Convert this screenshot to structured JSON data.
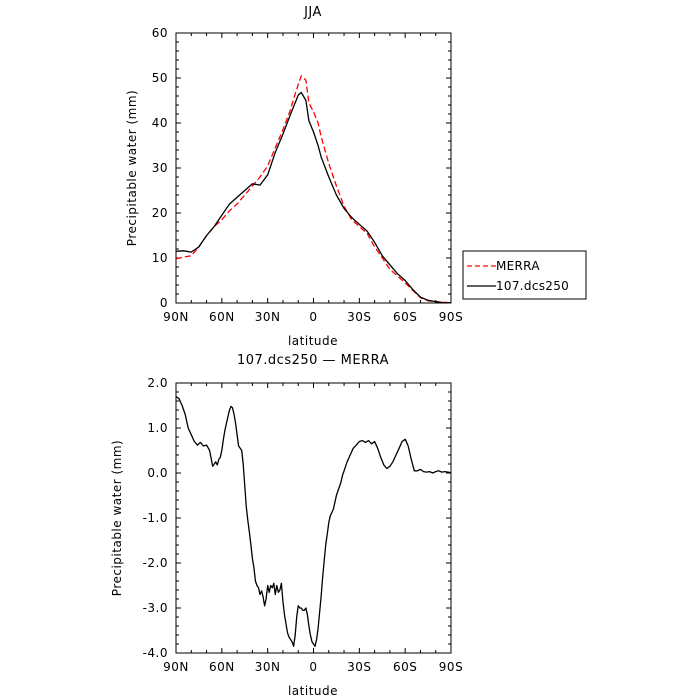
{
  "chart_data": [
    {
      "type": "line",
      "title": "JJA",
      "xlabel": "latitude",
      "ylabel": "Precipitable water (mm)",
      "xlim": [
        90,
        -90
      ],
      "ylim": [
        0,
        60
      ],
      "x_ticks": [
        90,
        60,
        30,
        0,
        -30,
        -60,
        -90
      ],
      "x_tick_labels": [
        "90N",
        "60N",
        "30N",
        "0",
        "30S",
        "60S",
        "90S"
      ],
      "y_ticks": [
        0,
        10,
        20,
        30,
        40,
        50,
        60
      ],
      "y_tick_labels": [
        "0",
        "10",
        "20",
        "30",
        "40",
        "50",
        "60"
      ],
      "legend": {
        "placement": "outside-right"
      },
      "series": [
        {
          "name": "MERRA",
          "color": "#ff0000",
          "dash": "dashed",
          "x": [
            90,
            85,
            80,
            75,
            70,
            65,
            60,
            55,
            50,
            45,
            40,
            35,
            30,
            25,
            20,
            15,
            12,
            10,
            8,
            5,
            3,
            0,
            -3,
            -5,
            -10,
            -15,
            -20,
            -25,
            -30,
            -35,
            -40,
            -45,
            -50,
            -55,
            -60,
            -65,
            -70,
            -75,
            -80,
            -85,
            -90
          ],
          "values": [
            9.8,
            10.2,
            10.5,
            12.5,
            15,
            17,
            18.5,
            20.5,
            22,
            24,
            26,
            28,
            30.5,
            34.5,
            38.5,
            43,
            46.5,
            48.5,
            50.5,
            49.5,
            44.5,
            42.5,
            40,
            37,
            31,
            26,
            21.5,
            18.5,
            17,
            15.5,
            12.5,
            10,
            7.5,
            6,
            4.5,
            2.8,
            1.2,
            0.5,
            0.3,
            0.15,
            0.05
          ]
        },
        {
          "name": "107.dcs250",
          "color": "#000000",
          "dash": "solid",
          "x": [
            90,
            85,
            80,
            75,
            70,
            65,
            60,
            55,
            50,
            45,
            40,
            35,
            30,
            25,
            20,
            15,
            12,
            10,
            8,
            5,
            3,
            0,
            -3,
            -5,
            -10,
            -15,
            -20,
            -25,
            -30,
            -35,
            -40,
            -45,
            -50,
            -55,
            -60,
            -65,
            -70,
            -75,
            -80,
            -85,
            -90
          ],
          "values": [
            11.5,
            11.6,
            11.3,
            12.5,
            15,
            17,
            19.5,
            22,
            23.5,
            25,
            26.5,
            26.2,
            28.5,
            33.5,
            37.5,
            42,
            44.5,
            46.2,
            46.8,
            45,
            40.5,
            38,
            35,
            32.5,
            28,
            24,
            21,
            19,
            17.5,
            16,
            13.5,
            10.5,
            8.5,
            6.5,
            5,
            3,
            1.3,
            0.6,
            0.3,
            0.1,
            0.05
          ]
        }
      ]
    },
    {
      "type": "line",
      "title": "107.dcs250 — MERRA",
      "xlabel": "latitude",
      "ylabel": "Precipitable water (mm)",
      "xlim": [
        90,
        -90
      ],
      "ylim": [
        -4,
        2
      ],
      "x_ticks": [
        90,
        60,
        30,
        0,
        -30,
        -60,
        -90
      ],
      "x_tick_labels": [
        "90N",
        "60N",
        "30N",
        "0",
        "30S",
        "60S",
        "90S"
      ],
      "y_ticks": [
        -4,
        -3,
        -2,
        -1,
        0,
        1,
        2
      ],
      "y_tick_labels": [
        "-4.0",
        "-3.0",
        "-2.0",
        "-1.0",
        "0.0",
        "1.0",
        "2.0"
      ],
      "series": [
        {
          "color": "#000000",
          "dash": "solid",
          "x": [
            90,
            88,
            86,
            84,
            82,
            80,
            78,
            76,
            74,
            72,
            70,
            68,
            66,
            64,
            63,
            62,
            61,
            60,
            59,
            58,
            57,
            56,
            55,
            54,
            53,
            52,
            51,
            50,
            49,
            48,
            47,
            46,
            45,
            44,
            43,
            42,
            41,
            40,
            39,
            38,
            37,
            36,
            35,
            34,
            33,
            32,
            31,
            30,
            29,
            28,
            27,
            26,
            25,
            24,
            23,
            22,
            21,
            20,
            19,
            18,
            17,
            16,
            15,
            14,
            13,
            12,
            11,
            10,
            9,
            8,
            7,
            6,
            5,
            4,
            3,
            2,
            1,
            0,
            -1,
            -2,
            -3,
            -4,
            -5,
            -6,
            -7,
            -8,
            -9,
            -10,
            -11,
            -12,
            -13,
            -14,
            -15,
            -16,
            -17,
            -18,
            -19,
            -20,
            -22,
            -24,
            -26,
            -28,
            -30,
            -32,
            -34,
            -36,
            -38,
            -40,
            -42,
            -44,
            -46,
            -48,
            -50,
            -52,
            -54,
            -56,
            -58,
            -60,
            -62,
            -64,
            -66,
            -68,
            -70,
            -72,
            -74,
            -76,
            -78,
            -80,
            -82,
            -84,
            -86,
            -88,
            -90
          ],
          "values": [
            1.7,
            1.65,
            1.5,
            1.3,
            1.0,
            0.85,
            0.7,
            0.62,
            0.68,
            0.6,
            0.62,
            0.5,
            0.15,
            0.25,
            0.18,
            0.3,
            0.35,
            0.5,
            0.75,
            0.95,
            1.1,
            1.25,
            1.4,
            1.48,
            1.45,
            1.3,
            1.1,
            0.85,
            0.6,
            0.55,
            0.5,
            0.2,
            -0.3,
            -0.75,
            -1.05,
            -1.3,
            -1.6,
            -1.9,
            -2.1,
            -2.4,
            -2.5,
            -2.55,
            -2.7,
            -2.62,
            -2.75,
            -2.95,
            -2.8,
            -2.5,
            -2.65,
            -2.5,
            -2.55,
            -2.45,
            -2.7,
            -2.5,
            -2.65,
            -2.6,
            -2.45,
            -2.85,
            -3.15,
            -3.35,
            -3.55,
            -3.65,
            -3.7,
            -3.75,
            -3.85,
            -3.6,
            -3.2,
            -2.95,
            -3.0,
            -3.0,
            -3.05,
            -3.05,
            -3.0,
            -3.15,
            -3.4,
            -3.6,
            -3.75,
            -3.8,
            -3.85,
            -3.7,
            -3.45,
            -3.1,
            -2.75,
            -2.3,
            -1.95,
            -1.6,
            -1.35,
            -1.1,
            -0.95,
            -0.88,
            -0.8,
            -0.65,
            -0.5,
            -0.4,
            -0.3,
            -0.2,
            -0.05,
            0.05,
            0.25,
            0.4,
            0.55,
            0.62,
            0.7,
            0.72,
            0.68,
            0.72,
            0.65,
            0.7,
            0.55,
            0.35,
            0.18,
            0.1,
            0.15,
            0.25,
            0.4,
            0.55,
            0.7,
            0.75,
            0.6,
            0.3,
            0.05,
            0.05,
            0.08,
            0.03,
            0.02,
            0.03,
            0.0,
            0.03,
            0.05,
            0.02,
            0.03,
            0.02,
            0.01
          ]
        }
      ]
    }
  ]
}
